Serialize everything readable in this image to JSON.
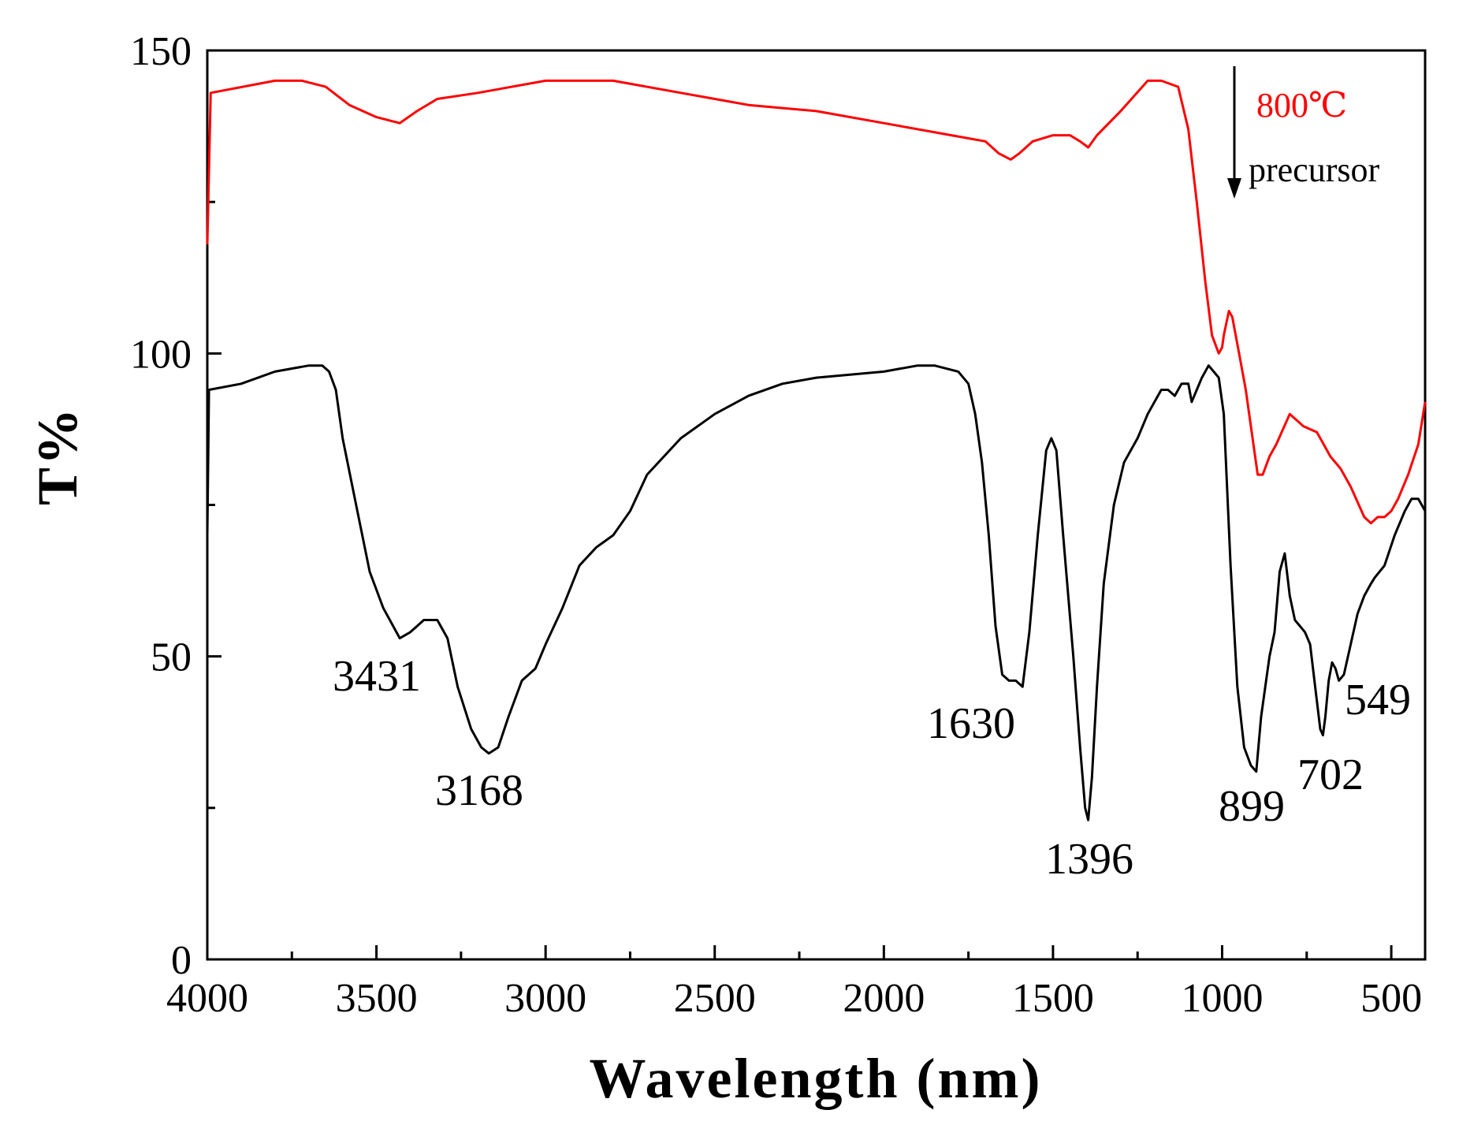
{
  "chart_data": {
    "type": "line",
    "xlabel": "Wavelength (nm)",
    "ylabel": "T%",
    "xlim": [
      4000,
      400
    ],
    "ylim": [
      0,
      150
    ],
    "x_ticks": [
      4000,
      3500,
      3000,
      2500,
      2000,
      1500,
      1000,
      500
    ],
    "x_tick_labels": [
      "4000",
      "3500",
      "3000",
      "2500",
      "2000",
      "1500",
      "1000",
      "500"
    ],
    "y_ticks": [
      0,
      50,
      100,
      150
    ],
    "y_tick_labels": [
      "0",
      "50",
      "100",
      "150"
    ],
    "colors": {
      "series_800": "#ff0000",
      "series_precursor": "#000000",
      "axis": "#000000"
    },
    "series": [
      {
        "name": "800℃",
        "color": "#ff0000",
        "x": [
          4000,
          3990,
          3800,
          3720,
          3650,
          3580,
          3500,
          3431,
          3380,
          3320,
          3200,
          3000,
          2800,
          2600,
          2400,
          2200,
          2000,
          1800,
          1700,
          1660,
          1625,
          1600,
          1560,
          1500,
          1450,
          1420,
          1396,
          1370,
          1300,
          1220,
          1180,
          1130,
          1100,
          1075,
          1050,
          1030,
          1010,
          1000,
          995,
          980,
          970,
          950,
          930,
          910,
          895,
          880,
          860,
          840,
          800,
          780,
          760,
          720,
          700,
          680,
          650,
          620,
          580,
          560,
          540,
          520,
          500,
          480,
          450,
          420,
          400
        ],
        "values": [
          118,
          143,
          145,
          145,
          144,
          141,
          139,
          138,
          140,
          142,
          143,
          145,
          145,
          143,
          141,
          140,
          138,
          136,
          135,
          133,
          132,
          133,
          135,
          136,
          136,
          135,
          134,
          136,
          140,
          145,
          145,
          144,
          137,
          125,
          112,
          103,
          100,
          101,
          103,
          107,
          106,
          100,
          94,
          86,
          80,
          80,
          83,
          85,
          90,
          89,
          88,
          87,
          85,
          83,
          81,
          78,
          73,
          72,
          73,
          73,
          74,
          76,
          80,
          85,
          92
        ]
      },
      {
        "name": "precursor",
        "color": "#000000",
        "x": [
          4000,
          3995,
          3900,
          3800,
          3700,
          3660,
          3640,
          3620,
          3600,
          3560,
          3520,
          3480,
          3431,
          3400,
          3380,
          3360,
          3320,
          3290,
          3260,
          3220,
          3190,
          3168,
          3140,
          3110,
          3070,
          3030,
          3000,
          2950,
          2900,
          2850,
          2800,
          2750,
          2700,
          2600,
          2500,
          2400,
          2300,
          2200,
          2100,
          2000,
          1950,
          1900,
          1850,
          1780,
          1750,
          1730,
          1710,
          1690,
          1670,
          1650,
          1630,
          1610,
          1590,
          1570,
          1545,
          1520,
          1505,
          1490,
          1470,
          1440,
          1420,
          1405,
          1396,
          1385,
          1370,
          1350,
          1320,
          1290,
          1250,
          1220,
          1200,
          1180,
          1160,
          1140,
          1120,
          1100,
          1090,
          1075,
          1060,
          1040,
          1025,
          1010,
          995,
          975,
          955,
          935,
          915,
          899,
          885,
          870,
          860,
          845,
          830,
          815,
          800,
          785,
          770,
          755,
          740,
          725,
          710,
          702,
          695,
          685,
          675,
          665,
          655,
          640,
          620,
          600,
          580,
          560,
          549,
          520,
          490,
          460,
          440,
          420,
          400
        ],
        "values": [
          70,
          94,
          95,
          97,
          98,
          98,
          97,
          94,
          86,
          75,
          64,
          58,
          53,
          54,
          55,
          56,
          56,
          53,
          45,
          38,
          35,
          34,
          35,
          40,
          46,
          48,
          52,
          58,
          65,
          68,
          70,
          74,
          80,
          86,
          90,
          93,
          95,
          96,
          96.5,
          97,
          97.5,
          98,
          98,
          97,
          95,
          90,
          82,
          70,
          55,
          47,
          46,
          46,
          45,
          54,
          70,
          84,
          86,
          84,
          70,
          50,
          35,
          25,
          23,
          30,
          45,
          62,
          75,
          82,
          86,
          90,
          92,
          94,
          94,
          93,
          95,
          95,
          92,
          94,
          96,
          98,
          97,
          96,
          90,
          65,
          45,
          35,
          32,
          31,
          40,
          46,
          50,
          54,
          64,
          67,
          60,
          56,
          55,
          54,
          52,
          45,
          38,
          37,
          40,
          46,
          49,
          48,
          46,
          47,
          52,
          57,
          60,
          62,
          63,
          65,
          70,
          74,
          76,
          76,
          74
        ]
      }
    ],
    "peak_labels": [
      "3431",
      "3168",
      "1630",
      "1396",
      "899",
      "702",
      "549"
    ],
    "legend": {
      "position": "top-right",
      "labels": [
        "800℃",
        "precursor"
      ],
      "arrow": "down"
    }
  }
}
